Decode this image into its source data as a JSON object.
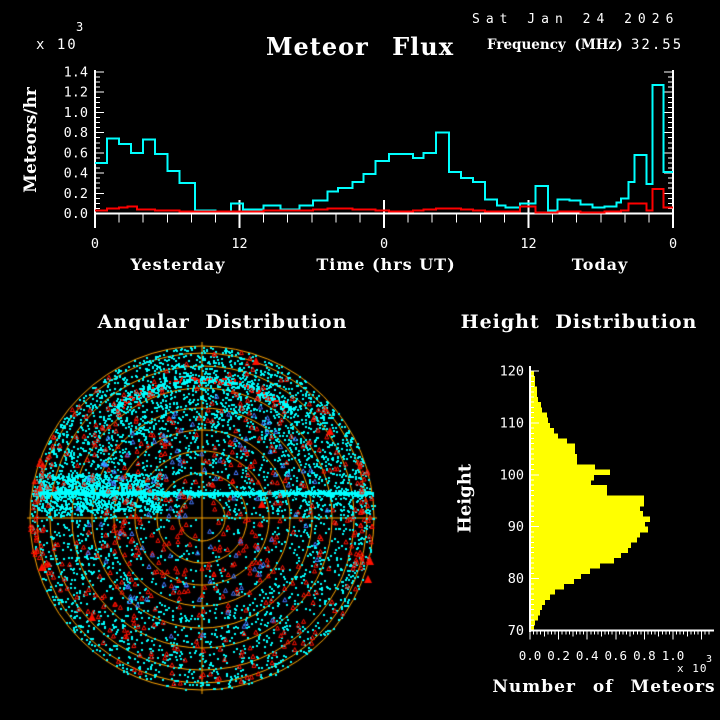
{
  "page": {
    "background": "#000000",
    "text_color": "#FFFFFF"
  },
  "header": {
    "title": "Meteor Flux",
    "date": "Sat Jan 24 2026",
    "frequency_label": "Frequency (MHz)",
    "frequency_value": "32.55"
  },
  "chart_data": [
    {
      "id": "flux",
      "type": "line",
      "title": "Meteor Flux",
      "ylabel": "Meteors/hr",
      "xlabel": "Time (hrs UT)",
      "day_labels": [
        "Yesterday",
        "Today"
      ],
      "y_scale": {
        "base": "x 10",
        "exp": "3"
      },
      "ylim": [
        0,
        1.4
      ],
      "xlim_hours": [
        0,
        48
      ],
      "y_tick_labels": [
        "0.0",
        "0.2",
        "0.4",
        "0.6",
        "0.8",
        "1.0",
        "1.2",
        "1.4"
      ],
      "y_minor_step": 0.05,
      "x_minor_step_hours": 2,
      "x_tick_labels": [
        {
          "hour": 0,
          "label": "0"
        },
        {
          "hour": 12,
          "label": "12"
        },
        {
          "hour": 24,
          "label": "0"
        },
        {
          "hour": 36,
          "label": "12"
        },
        {
          "hour": 48,
          "label": "0"
        }
      ],
      "series": [
        {
          "name": "meteor-rate",
          "color": "#00FFFF",
          "units": "10^3 meteors/hr",
          "steps": [
            [
              0,
              0.5
            ],
            [
              1,
              0.74
            ],
            [
              2,
              0.69
            ],
            [
              3,
              0.6
            ],
            [
              4,
              0.73
            ],
            [
              5,
              0.59
            ],
            [
              6,
              0.42
            ],
            [
              7,
              0.3
            ],
            [
              8.3,
              0.03
            ],
            [
              10,
              0.02
            ],
            [
              11.3,
              0.1
            ],
            [
              12.3,
              0.04
            ],
            [
              14,
              0.08
            ],
            [
              15.4,
              0.04
            ],
            [
              17,
              0.08
            ],
            [
              18.1,
              0.13
            ],
            [
              19.3,
              0.22
            ],
            [
              20.2,
              0.25
            ],
            [
              21.4,
              0.31
            ],
            [
              22.3,
              0.39
            ],
            [
              23.3,
              0.52
            ],
            [
              24.4,
              0.59
            ],
            [
              26.4,
              0.55
            ],
            [
              27.3,
              0.6
            ],
            [
              28.3,
              0.8
            ],
            [
              29.4,
              0.41
            ],
            [
              30.4,
              0.35
            ],
            [
              31.4,
              0.31
            ],
            [
              32.4,
              0.14
            ],
            [
              33.4,
              0.08
            ],
            [
              34.1,
              0.06
            ],
            [
              35.3,
              0.1
            ],
            [
              36.6,
              0.27
            ],
            [
              37.6,
              0.03
            ],
            [
              38.4,
              0.14
            ],
            [
              39.4,
              0.13
            ],
            [
              40.3,
              0.09
            ],
            [
              41.3,
              0.06
            ],
            [
              42.3,
              0.07
            ],
            [
              43.3,
              0.11
            ],
            [
              43.7,
              0.15
            ],
            [
              44.3,
              0.31
            ],
            [
              44.8,
              0.58
            ],
            [
              45.8,
              0.29
            ],
            [
              46.3,
              1.27
            ],
            [
              47.2,
              0.41
            ]
          ]
        },
        {
          "name": "background-noise",
          "color": "#FF0000",
          "units": "10^3 meteors/hr",
          "steps": [
            [
              0,
              0.03
            ],
            [
              1,
              0.05
            ],
            [
              2,
              0.06
            ],
            [
              2.7,
              0.07
            ],
            [
              3.5,
              0.04
            ],
            [
              5,
              0.03
            ],
            [
              7,
              0.02
            ],
            [
              12,
              0.02
            ],
            [
              14,
              0.03
            ],
            [
              17,
              0.03
            ],
            [
              18.1,
              0.04
            ],
            [
              19.3,
              0.05
            ],
            [
              21.4,
              0.04
            ],
            [
              23.3,
              0.03
            ],
            [
              24.4,
              0.02
            ],
            [
              26.4,
              0.03
            ],
            [
              27.3,
              0.04
            ],
            [
              28.3,
              0.05
            ],
            [
              29.4,
              0.05
            ],
            [
              30.4,
              0.04
            ],
            [
              31.4,
              0.03
            ],
            [
              32.4,
              0.02
            ],
            [
              34.1,
              0.02
            ],
            [
              35.3,
              0.07
            ],
            [
              36.6,
              0.01
            ],
            [
              38.4,
              0.02
            ],
            [
              40.3,
              0.01
            ],
            [
              42.3,
              0.02
            ],
            [
              43.7,
              0.03
            ],
            [
              44.3,
              0.1
            ],
            [
              45.8,
              0.03
            ],
            [
              46.3,
              0.24
            ],
            [
              47.2,
              0.06
            ]
          ]
        }
      ]
    },
    {
      "id": "angular",
      "type": "scatter",
      "title": "Angular Distribution",
      "grid_color": "#FFA500",
      "ring_radii_fraction": [
        0.134,
        0.262,
        0.39,
        0.512,
        0.64,
        0.756,
        0.884,
        0.959,
        1.0
      ],
      "point_colors": {
        "echo": "#00FFFF",
        "interference": "#FF1000",
        "other": "#4477FF"
      },
      "scatter_model": {
        "seed": 20260124,
        "outer_annulus_count": 2400,
        "outer_annulus_r_frac": [
          0.55,
          1.0
        ],
        "upper_half_count": 1700,
        "upper_half_r_frac": [
          0.12,
          1.0
        ],
        "inner_lower_count": 260,
        "inner_lower_r_frac": [
          0.0,
          0.6
        ],
        "band": {
          "y_offset": -25,
          "sigma": 5,
          "count": 800,
          "core_height": 3,
          "core_half_span": 168
        },
        "left_cloud_count": 900,
        "arc": {
          "radius_frac": 0.81,
          "angle_deg_range": [
            50,
            130
          ],
          "sigma": 7,
          "cyan_count": 420,
          "red_count": 70
        },
        "red_uniform_count": 430,
        "red_rim_count": 80,
        "red_lower_cluster_count": 60,
        "blue_count": 115
      },
      "solid_red_triangles": [
        [
          262,
          505
        ],
        [
          370,
          562
        ],
        [
          42,
          568
        ],
        [
          330,
          432
        ],
        [
          92,
          618
        ],
        [
          256,
          362
        ],
        [
          368,
          580
        ]
      ]
    },
    {
      "id": "height",
      "type": "bar",
      "title": "Height Distribution",
      "ylabel": "Height",
      "xlabel": "Number of Meteors",
      "x_scale": {
        "base": "x 10",
        "exp": "3"
      },
      "bar_color": "#FFFF00",
      "ylim_km": [
        70,
        120
      ],
      "xlim_thousands": [
        0,
        1.27
      ],
      "y_tick_labels": [
        "70",
        "80",
        "90",
        "100",
        "110",
        "120"
      ],
      "x_tick_labels": [
        "0.0",
        "0.2",
        "0.4",
        "0.6",
        "0.8",
        "1.0"
      ],
      "bin_start_km": 70,
      "bin_size_km": 1,
      "values_thousands": [
        0.02,
        0.03,
        0.05,
        0.06,
        0.08,
        0.1,
        0.13,
        0.17,
        0.23,
        0.3,
        0.35,
        0.41,
        0.48,
        0.58,
        0.63,
        0.68,
        0.7,
        0.74,
        0.76,
        0.82,
        0.8,
        0.83,
        0.78,
        0.76,
        0.79,
        0.79,
        0.53,
        0.53,
        0.42,
        0.44,
        0.55,
        0.45,
        0.32,
        0.32,
        0.31,
        0.31,
        0.25,
        0.19,
        0.16,
        0.13,
        0.12,
        0.11,
        0.08,
        0.07,
        0.05,
        0.04,
        0.04,
        0.03,
        0.03,
        0.02
      ]
    }
  ]
}
